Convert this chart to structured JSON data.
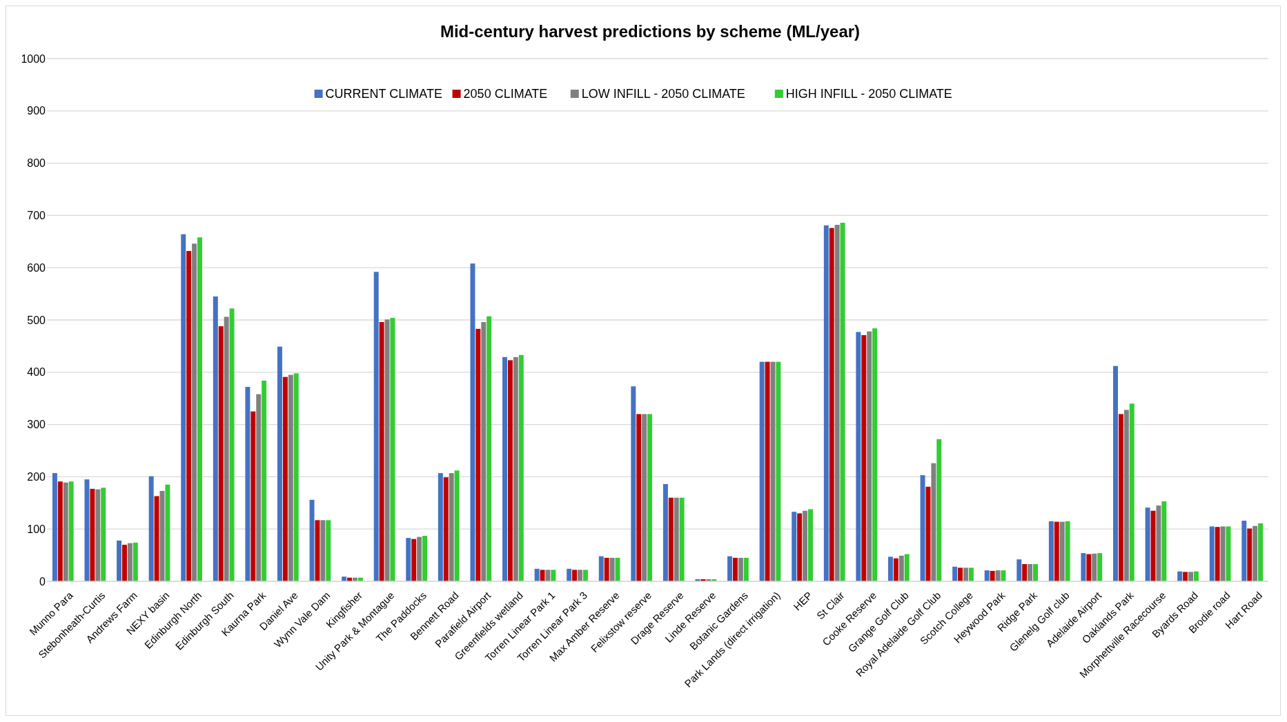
{
  "chart_data": {
    "type": "bar",
    "title": "Mid-century harvest predictions by scheme (ML/year)",
    "categories": [
      "Munno Para",
      "Stebonheath-Curtis",
      "Andrews Farm",
      "NEXY basin",
      "Edinburgh North",
      "Edinburgh South",
      "Kaurna Park",
      "Daniel Ave",
      "Wynn Vale Dam",
      "Kingfisher",
      "Unity Park & Montague",
      "The Paddocks",
      "Bennett Road",
      "Parafield Airport",
      "Greenfields wetland",
      "Torren Linear Park 1",
      "Torren Linear Park 3",
      "Max Amber Reserve",
      "Felixstow reserve",
      "Drage Reserve",
      "Linde Reserve",
      "Botanic Gardens",
      "Park Lands (direct irrigation)",
      "HEP",
      "St Clair",
      "Cooke Reserve",
      "Grange Golf Club",
      "Royal Adelaide Golf Club",
      "Scotch College",
      "Heywood Park",
      "Ridge Park",
      "Glenelg Golf club",
      "Adelaide Airport",
      "Oaklands Park",
      "Morphettville Racecourse",
      "Byards Road",
      "Brodie road",
      "Hart Road"
    ],
    "series": [
      {
        "name": "CURRENT CLIMATE",
        "color": "#4472c4",
        "values": [
          207,
          195,
          78,
          201,
          664,
          545,
          372,
          449,
          156,
          9,
          592,
          83,
          207,
          608,
          429,
          24,
          24,
          48,
          373,
          186,
          4,
          48,
          420,
          133,
          681,
          477,
          47,
          203,
          28,
          21,
          42,
          115,
          54,
          412,
          141,
          19,
          105,
          116
        ]
      },
      {
        "name": "2050 CLIMATE",
        "color": "#c00000",
        "values": [
          191,
          177,
          70,
          163,
          632,
          488,
          325,
          391,
          117,
          7,
          496,
          81,
          199,
          483,
          423,
          22,
          22,
          45,
          320,
          160,
          4,
          45,
          420,
          130,
          676,
          471,
          44,
          181,
          26,
          20,
          33,
          114,
          52,
          320,
          135,
          18,
          104,
          101
        ]
      },
      {
        "name": "LOW INFILL - 2050 CLIMATE",
        "color": "#808080",
        "values": [
          189,
          176,
          73,
          173,
          646,
          506,
          358,
          395,
          117,
          7,
          501,
          85,
          207,
          496,
          429,
          22,
          22,
          45,
          320,
          160,
          4,
          45,
          420,
          135,
          682,
          478,
          49,
          226,
          26,
          21,
          33,
          114,
          53,
          328,
          145,
          18,
          105,
          106
        ]
      },
      {
        "name": "HIGH INFILL - 2050 CLIMATE",
        "color": "#33cc33",
        "values": [
          191,
          179,
          74,
          185,
          658,
          522,
          384,
          398,
          117,
          7,
          504,
          87,
          212,
          507,
          433,
          22,
          22,
          45,
          320,
          160,
          4,
          45,
          420,
          138,
          686,
          484,
          52,
          272,
          26,
          21,
          33,
          115,
          54,
          340,
          153,
          19,
          105,
          111
        ]
      }
    ],
    "ylim": [
      0,
      1000
    ],
    "yticks": [
      0,
      100,
      200,
      300,
      400,
      500,
      600,
      700,
      800,
      900,
      1000
    ],
    "grid": "y",
    "legend": "top"
  }
}
